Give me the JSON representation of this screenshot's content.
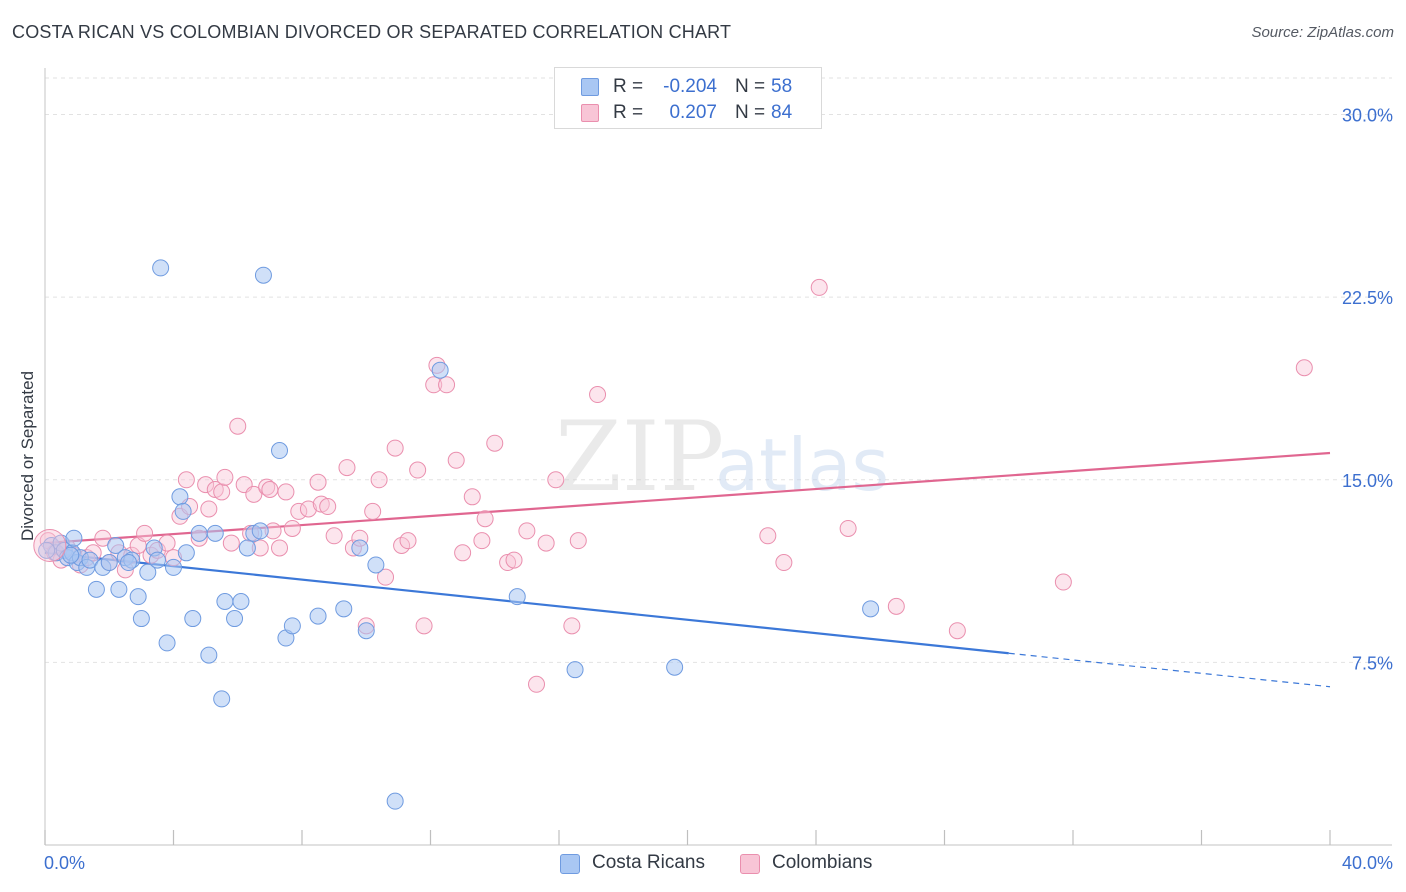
{
  "header": {
    "title": "COSTA RICAN VS COLOMBIAN DIVORCED OR SEPARATED CORRELATION CHART",
    "source": "Source: ZipAtlas.com"
  },
  "watermark": {
    "zip": "ZIP",
    "atlas": "atlas"
  },
  "legend_top": {
    "rows": [
      {
        "r_label": "R =",
        "r_value": "-0.204",
        "n_label": "N =",
        "n_value": "58",
        "color": "#a9c7f3",
        "border": "#6f9be0"
      },
      {
        "r_label": "R =",
        "r_value": "0.207",
        "n_label": "N =",
        "n_value": "84",
        "color": "#f8c5d6",
        "border": "#ea8fae"
      }
    ]
  },
  "legend_bottom": [
    {
      "label": "Costa Ricans",
      "color": "#a9c7f3",
      "border": "#6f9be0"
    },
    {
      "label": "Colombians",
      "color": "#f8c5d6",
      "border": "#ea8fae"
    }
  ],
  "chart_data": {
    "type": "scatter",
    "title": "COSTA RICAN VS COLOMBIAN DIVORCED OR SEPARATED CORRELATION CHART",
    "xlabel": "",
    "ylabel": "Divorced or Separated",
    "xlim": [
      0,
      40
    ],
    "ylim": [
      0,
      31.5
    ],
    "x_tick_labels": [
      "0.0%",
      "40.0%"
    ],
    "y_ticks": [
      7.5,
      15.0,
      22.5,
      30.0
    ],
    "y_tick_labels": [
      "7.5%",
      "15.0%",
      "22.5%",
      "30.0%"
    ],
    "grid": "horizontal dashed",
    "legend_position": "top-center",
    "colors": {
      "costa_ricans": "#3c78d8",
      "colombians": "#e06690",
      "tick_label": "#3c6fcf"
    },
    "series": [
      {
        "name": "Costa Ricans",
        "r": -0.204,
        "n": 58,
        "trend": {
          "x": [
            0,
            40
          ],
          "y": [
            12.0,
            6.5
          ],
          "solid_until_x": 30.0
        },
        "points": [
          [
            0.2,
            12.3
          ],
          [
            0.35,
            12.0
          ],
          [
            0.5,
            12.4
          ],
          [
            0.6,
            12.1
          ],
          [
            0.7,
            11.8
          ],
          [
            0.85,
            12.0
          ],
          [
            0.9,
            12.6
          ],
          [
            1.0,
            11.6
          ],
          [
            1.1,
            11.8
          ],
          [
            1.3,
            11.4
          ],
          [
            1.4,
            11.7
          ],
          [
            1.6,
            10.5
          ],
          [
            1.8,
            11.4
          ],
          [
            2.0,
            11.6
          ],
          [
            2.2,
            12.3
          ],
          [
            2.3,
            10.5
          ],
          [
            2.5,
            11.8
          ],
          [
            2.7,
            11.7
          ],
          [
            2.9,
            10.2
          ],
          [
            3.0,
            9.3
          ],
          [
            3.2,
            11.2
          ],
          [
            3.4,
            12.2
          ],
          [
            3.5,
            11.7
          ],
          [
            3.6,
            23.7
          ],
          [
            3.8,
            8.3
          ],
          [
            4.0,
            11.4
          ],
          [
            4.2,
            14.3
          ],
          [
            4.3,
            13.7
          ],
          [
            4.4,
            12.0
          ],
          [
            4.6,
            9.3
          ],
          [
            4.8,
            12.8
          ],
          [
            5.1,
            7.8
          ],
          [
            5.3,
            12.8
          ],
          [
            5.5,
            6.0
          ],
          [
            5.6,
            10.0
          ],
          [
            5.9,
            9.3
          ],
          [
            6.1,
            10.0
          ],
          [
            6.3,
            12.2
          ],
          [
            6.5,
            12.8
          ],
          [
            6.7,
            12.9
          ],
          [
            6.8,
            23.4
          ],
          [
            7.3,
            16.2
          ],
          [
            7.5,
            8.5
          ],
          [
            7.7,
            9.0
          ],
          [
            8.5,
            9.4
          ],
          [
            9.3,
            9.7
          ],
          [
            9.8,
            12.2
          ],
          [
            10.0,
            8.8
          ],
          [
            10.3,
            11.5
          ],
          [
            10.9,
            1.8
          ],
          [
            12.3,
            19.5
          ],
          [
            14.7,
            10.2
          ],
          [
            16.5,
            7.2
          ],
          [
            19.6,
            7.3
          ],
          [
            25.7,
            9.7
          ],
          [
            0.05,
            12.1
          ],
          [
            0.8,
            11.9
          ],
          [
            2.6,
            11.6
          ]
        ]
      },
      {
        "name": "Colombians",
        "r": 0.207,
        "n": 84,
        "trend": {
          "x": [
            0,
            40
          ],
          "y": [
            12.4,
            16.1
          ]
        },
        "points": [
          [
            0.1,
            12.5
          ],
          [
            0.3,
            12.0
          ],
          [
            0.5,
            11.7
          ],
          [
            0.7,
            12.2
          ],
          [
            0.9,
            11.9
          ],
          [
            1.1,
            11.5
          ],
          [
            1.3,
            11.8
          ],
          [
            1.5,
            12.0
          ],
          [
            1.8,
            12.6
          ],
          [
            2.0,
            11.6
          ],
          [
            2.3,
            12.0
          ],
          [
            2.5,
            11.3
          ],
          [
            2.7,
            11.9
          ],
          [
            2.9,
            12.3
          ],
          [
            3.1,
            12.8
          ],
          [
            3.3,
            11.9
          ],
          [
            3.5,
            12.1
          ],
          [
            3.8,
            12.4
          ],
          [
            4.0,
            11.8
          ],
          [
            4.2,
            13.5
          ],
          [
            4.4,
            15.0
          ],
          [
            4.5,
            13.9
          ],
          [
            4.8,
            12.6
          ],
          [
            5.0,
            14.8
          ],
          [
            5.1,
            13.8
          ],
          [
            5.3,
            14.6
          ],
          [
            5.5,
            14.5
          ],
          [
            5.6,
            15.1
          ],
          [
            5.8,
            12.4
          ],
          [
            6.0,
            17.2
          ],
          [
            6.2,
            14.8
          ],
          [
            6.4,
            12.8
          ],
          [
            6.5,
            14.4
          ],
          [
            6.7,
            12.2
          ],
          [
            6.9,
            14.7
          ],
          [
            7.0,
            14.6
          ],
          [
            7.1,
            12.9
          ],
          [
            7.3,
            12.2
          ],
          [
            7.5,
            14.5
          ],
          [
            7.7,
            13.0
          ],
          [
            7.9,
            13.7
          ],
          [
            8.2,
            13.8
          ],
          [
            8.5,
            14.9
          ],
          [
            8.6,
            14.0
          ],
          [
            8.8,
            13.9
          ],
          [
            9.0,
            12.7
          ],
          [
            9.4,
            15.5
          ],
          [
            9.6,
            12.2
          ],
          [
            9.8,
            12.6
          ],
          [
            10.0,
            9.0
          ],
          [
            10.2,
            13.7
          ],
          [
            10.4,
            15.0
          ],
          [
            10.6,
            11.0
          ],
          [
            10.9,
            16.3
          ],
          [
            11.1,
            12.3
          ],
          [
            11.3,
            12.5
          ],
          [
            11.6,
            15.4
          ],
          [
            11.8,
            9.0
          ],
          [
            12.1,
            18.9
          ],
          [
            12.2,
            19.7
          ],
          [
            12.5,
            18.9
          ],
          [
            12.8,
            15.8
          ],
          [
            13.0,
            12.0
          ],
          [
            13.3,
            14.3
          ],
          [
            13.6,
            12.5
          ],
          [
            13.7,
            13.4
          ],
          [
            14.0,
            16.5
          ],
          [
            14.4,
            11.6
          ],
          [
            14.6,
            11.7
          ],
          [
            15.0,
            12.9
          ],
          [
            15.3,
            6.6
          ],
          [
            15.6,
            12.4
          ],
          [
            15.9,
            15.0
          ],
          [
            16.4,
            9.0
          ],
          [
            16.6,
            12.5
          ],
          [
            17.2,
            18.5
          ],
          [
            22.5,
            12.7
          ],
          [
            23.0,
            11.6
          ],
          [
            24.1,
            22.9
          ],
          [
            25.0,
            13.0
          ],
          [
            26.5,
            9.8
          ],
          [
            28.4,
            8.8
          ],
          [
            31.7,
            10.8
          ],
          [
            39.2,
            19.6
          ]
        ]
      }
    ]
  }
}
